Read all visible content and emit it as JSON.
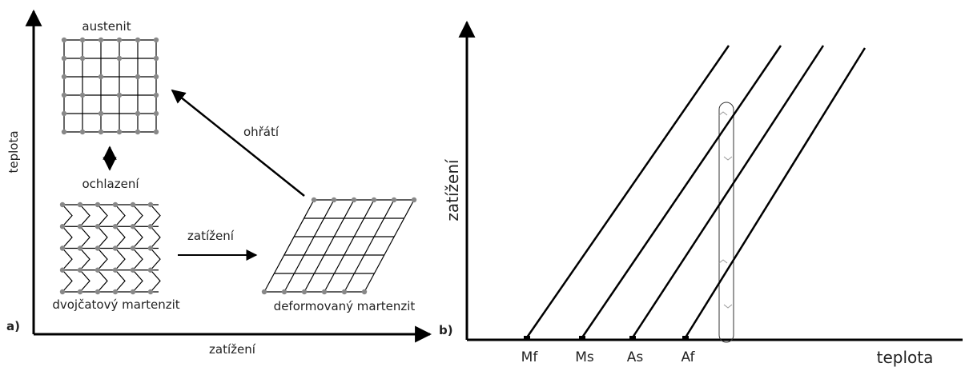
{
  "panel_a": {
    "label": "a)",
    "y_axis_title": "teplota",
    "x_axis_title": "zatížení",
    "austenite": "austenit",
    "cooling": "ochlazení",
    "heating": "ohřátí",
    "loading": "zatížení",
    "twinned": "dvojčatový martenzit",
    "deformed": "deformovaný martenzit"
  },
  "panel_b": {
    "label": "b)",
    "y_axis_title": "zatížení",
    "x_axis_title": "teplota",
    "temperatures": [
      "Mf",
      "Ms",
      "As",
      "Af"
    ]
  }
}
